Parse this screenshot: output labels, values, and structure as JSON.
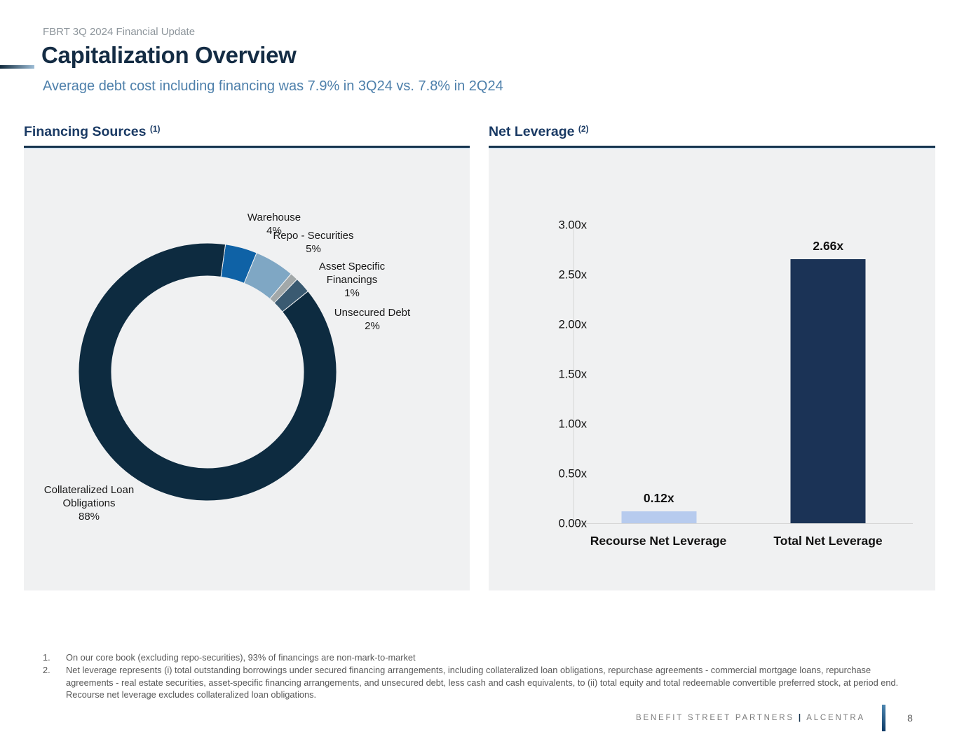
{
  "page": {
    "eyebrow": "FBRT 3Q 2024 Financial Update",
    "title": "Capitalization Overview",
    "subtitle": "Average debt cost including financing was 7.9% in 3Q24 vs. 7.8% in 2Q24"
  },
  "sections": {
    "financing": {
      "title": "Financing Sources",
      "footnote_ref": "(1)"
    },
    "leverage": {
      "title": "Net Leverage",
      "footnote_ref": "(2)"
    }
  },
  "chart_data": [
    {
      "type": "pie",
      "title": "Financing Sources",
      "donut": true,
      "start_angle_deg": 8,
      "legend_position": "labels-around-ring",
      "slices": [
        {
          "id": "warehouse",
          "label": "Warehouse",
          "value": 4,
          "pct_label": "4%",
          "color": "#0f62a6",
          "label_lines": [
            "Warehouse",
            "4%"
          ]
        },
        {
          "id": "repo-securities",
          "label": "Repo - Securities",
          "value": 5,
          "pct_label": "5%",
          "color": "#7fa7c4",
          "label_lines": [
            "Repo - Securities",
            "5%"
          ]
        },
        {
          "id": "asset-specific-financings",
          "label": "Asset Specific Financings",
          "value": 1,
          "pct_label": "1%",
          "color": "#a2a8a9",
          "label_lines": [
            "Asset Specific",
            "Financings",
            "1%"
          ]
        },
        {
          "id": "unsecured-debt",
          "label": "Unsecured Debt",
          "value": 2,
          "pct_label": "2%",
          "color": "#3a5a71",
          "label_lines": [
            "Unsecured  Debt",
            "2%"
          ]
        },
        {
          "id": "collateralized-loan-obligations",
          "label": "Collateralized Loan Obligations",
          "value": 88,
          "pct_label": "88%",
          "color": "#0d2b40",
          "label_lines": [
            "Collateralized Loan",
            "Obligations",
            "88%"
          ]
        }
      ]
    },
    {
      "type": "bar",
      "title": "Net Leverage",
      "categories": [
        "Recourse Net Leverage",
        "Total Net Leverage"
      ],
      "values": [
        0.12,
        2.66
      ],
      "value_labels": [
        "0.12x",
        "2.66x"
      ],
      "bar_colors": [
        "#b7cbee",
        "#1b3356"
      ],
      "ylim": [
        0,
        3
      ],
      "yticks": [
        "3.00x",
        "2.50x",
        "2.00x",
        "1.50x",
        "1.00x",
        "0.50x",
        "0.00x"
      ],
      "grid": false,
      "xlabel": "",
      "ylabel": ""
    }
  ],
  "footnotes": [
    {
      "num": "1.",
      "text": "On our core book (excluding repo-securities), 93% of financings are non-mark-to-market"
    },
    {
      "num": "2.",
      "text": "Net leverage represents (i) total outstanding borrowings under secured financing arrangements, including collateralized loan obligations, repurchase agreements - commercial mortgage loans, repurchase agreements - real estate securities, asset-specific financing arrangements, and unsecured debt, less cash and cash equivalents, to (ii) total equity and total redeemable convertible preferred stock, at period end. Recourse net leverage excludes collateralized loan obligations."
    }
  ],
  "footer": {
    "brand_left": "BENEFIT STREET PARTNERS",
    "separator": "|",
    "brand_right": "ALCENTRA",
    "page_number": "8"
  },
  "colors": {
    "accent_navy": "#16344f",
    "header_navy": "#1a3a64",
    "subtitle_blue": "#4e80ab",
    "panel_bg": "#f0f1f2",
    "axis_gray": "#d6d6d6",
    "bar_recourse": "#b7cbee",
    "bar_total": "#1b3356"
  }
}
